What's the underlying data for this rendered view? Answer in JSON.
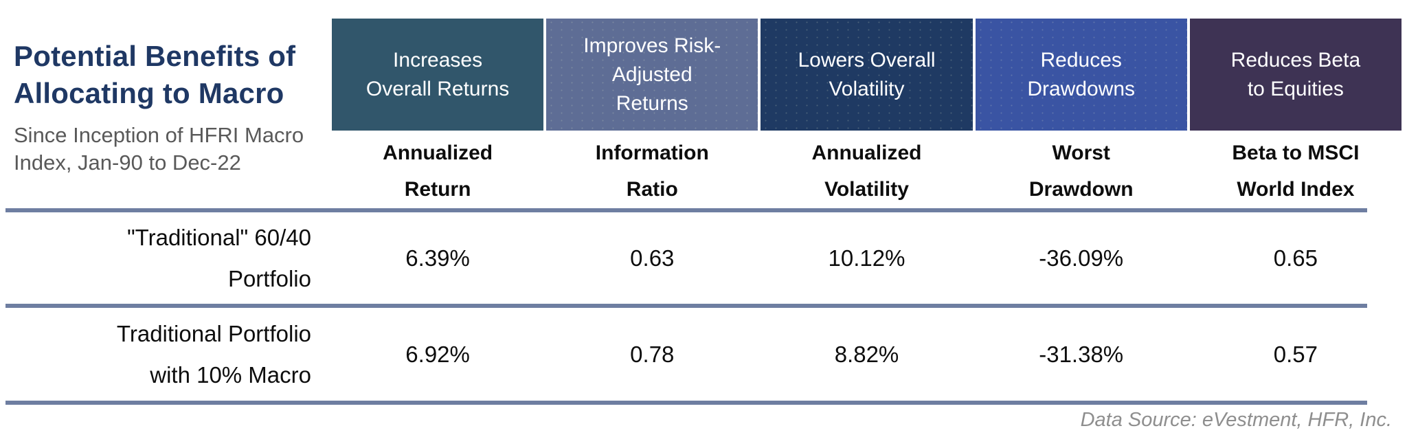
{
  "header": {
    "title": "Potential Benefits of\nAllocating to Macro",
    "subtitle": "Since Inception of HFRI Macro\nIndex, Jan-90 to Dec-22"
  },
  "benefit_boxes": [
    {
      "label": "Increases\nOverall Returns",
      "color": "#31566B"
    },
    {
      "label": "Improves Risk-\nAdjusted\nReturns",
      "color": "#5E6D95"
    },
    {
      "label": "Lowers Overall\nVolatility",
      "color": "#1F3A63"
    },
    {
      "label": "Reduces\nDrawdowns",
      "color": "#3A54A3"
    },
    {
      "label": "Reduces Beta\nto Equities",
      "color": "#3E3354"
    }
  ],
  "table": {
    "column_headers": [
      "Annualized\nReturn",
      "Information\nRatio",
      "Annualized\nVolatility",
      "Worst\nDrawdown",
      "Beta to MSCI\nWorld Index"
    ],
    "rows": [
      {
        "label": "\"Traditional\" 60/40\nPortfolio",
        "values": [
          "6.39%",
          "0.63",
          "10.12%",
          "-36.09%",
          "0.65"
        ]
      },
      {
        "label": "Traditional Portfolio\nwith 10% Macro",
        "values": [
          "6.92%",
          "0.78",
          "8.82%",
          "-31.38%",
          "0.57"
        ]
      }
    ]
  },
  "footer": {
    "data_source": "Data Source: eVestment, HFR, Inc."
  },
  "colors": {
    "title_text": "#1F3864",
    "subtitle_text": "#595959",
    "rule": "#6E7EA1",
    "footer_text": "#8E8E8E",
    "box_text": "#FFFFFF"
  }
}
